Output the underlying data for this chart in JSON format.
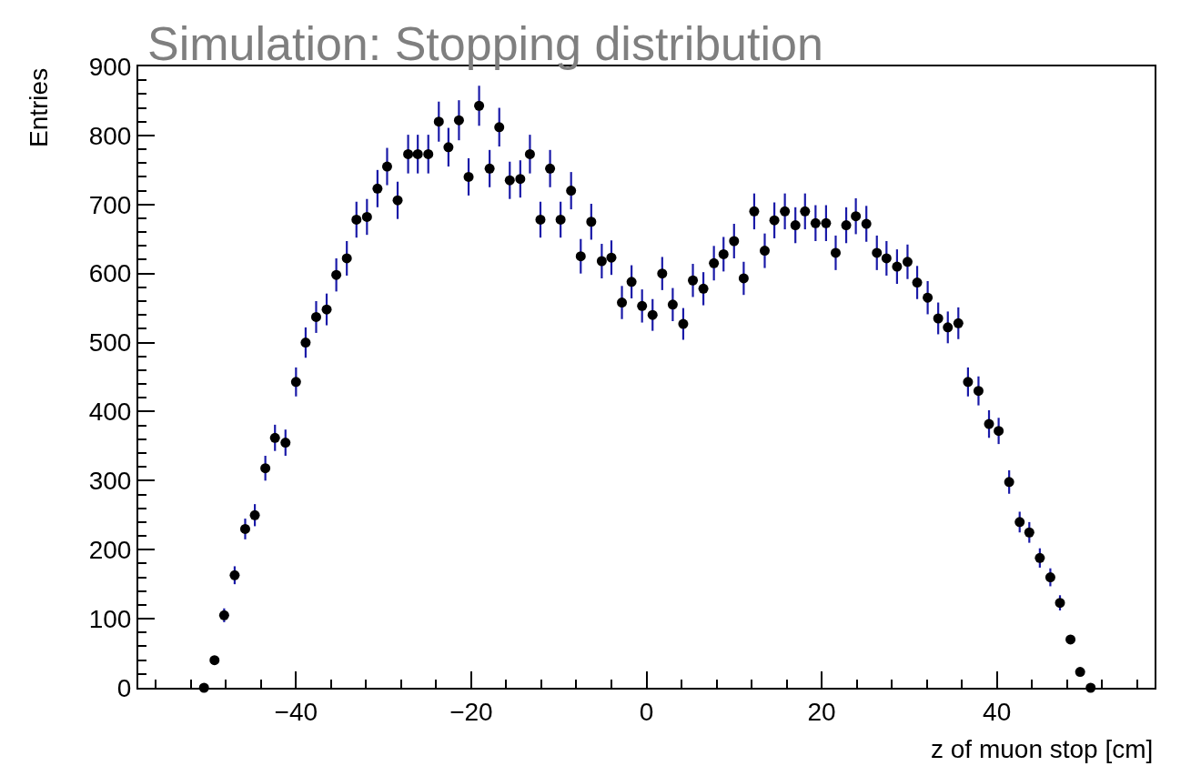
{
  "chart_data": {
    "type": "scatter",
    "title": "Simulation: Stopping distribution",
    "xlabel": "z of muon stop [cm]",
    "ylabel": "Entries",
    "x": [
      -50.5,
      -49.3,
      -48.2,
      -47.0,
      -45.8,
      -44.7,
      -43.5,
      -42.4,
      -41.2,
      -40.0,
      -38.9,
      -37.7,
      -36.5,
      -35.4,
      -34.2,
      -33.1,
      -31.9,
      -30.7,
      -29.6,
      -28.4,
      -27.2,
      -26.1,
      -24.9,
      -23.7,
      -22.6,
      -21.4,
      -20.3,
      -19.1,
      -17.9,
      -16.8,
      -15.6,
      -14.4,
      -13.3,
      -12.1,
      -11.0,
      -9.8,
      -8.6,
      -7.5,
      -6.3,
      -5.1,
      -4.0,
      -2.8,
      -1.7,
      -0.5,
      0.7,
      1.8,
      3.0,
      4.2,
      5.3,
      6.5,
      7.7,
      8.8,
      10.0,
      11.1,
      12.3,
      13.5,
      14.6,
      15.8,
      17.0,
      18.1,
      19.3,
      20.5,
      21.6,
      22.8,
      23.9,
      25.1,
      26.3,
      27.4,
      28.6,
      29.8,
      30.9,
      32.1,
      33.3,
      34.4,
      35.6,
      36.7,
      37.9,
      39.1,
      40.2,
      41.4,
      42.6,
      43.7,
      44.9,
      46.1,
      47.2,
      48.4,
      49.5,
      50.7
    ],
    "series": [
      {
        "color": "#000000",
        "values": [
          0,
          40,
          105,
          163,
          230,
          250,
          318,
          362,
          355,
          443,
          500,
          537,
          548,
          598,
          622,
          678,
          682,
          723,
          755,
          706,
          773,
          773,
          773,
          820,
          783,
          822,
          740,
          843,
          752,
          812,
          735,
          737,
          773,
          678,
          752,
          678,
          720,
          625,
          675,
          618,
          623,
          558,
          588,
          553,
          540,
          600,
          555,
          527,
          590,
          578,
          615,
          628,
          647,
          593,
          690,
          633,
          677,
          690,
          670,
          690,
          673,
          673,
          630,
          670,
          683,
          672,
          630,
          622,
          610,
          617,
          587,
          565,
          535,
          522,
          528,
          443,
          430,
          382,
          372,
          298,
          240,
          225,
          188,
          160,
          123,
          70,
          23,
          0
        ],
        "errors": [
          null,
          null,
          10,
          13,
          15,
          16,
          18,
          19,
          19,
          21,
          22,
          23,
          23,
          24,
          25,
          26,
          26,
          27,
          27,
          27,
          28,
          28,
          28,
          29,
          28,
          29,
          27,
          29,
          27,
          28,
          27,
          27,
          28,
          26,
          27,
          26,
          27,
          25,
          26,
          25,
          25,
          24,
          24,
          24,
          23,
          24,
          24,
          23,
          24,
          24,
          25,
          25,
          25,
          24,
          26,
          25,
          26,
          26,
          26,
          26,
          26,
          26,
          25,
          26,
          26,
          26,
          25,
          25,
          25,
          25,
          24,
          24,
          23,
          23,
          23,
          21,
          21,
          20,
          19,
          17,
          15,
          15,
          14,
          13,
          11,
          null,
          null,
          null
        ]
      }
    ],
    "xlim": [
      -58,
      58
    ],
    "xticks": [
      -40,
      -20,
      0,
      20,
      40
    ],
    "ylim": [
      0,
      900
    ],
    "yticks": [
      0,
      100,
      200,
      300,
      400,
      500,
      600,
      700,
      800,
      900
    ],
    "marker": "circle"
  }
}
